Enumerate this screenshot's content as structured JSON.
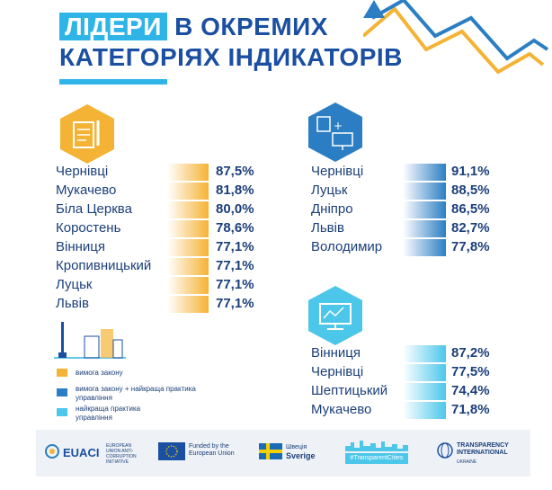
{
  "title": {
    "highlight": "ЛІДЕРИ",
    "line1_rest": "В ОКРЕМИХ",
    "line2": "КАТЕГОРІЯХ ІНДИКАТОРІВ"
  },
  "colors": {
    "accent_blue": "#2fb4e8",
    "dark_blue": "#1b4fa1",
    "orange": "#f5b335",
    "mid_blue": "#2b7ec3",
    "light_blue": "#4cc7ea"
  },
  "categories": [
    {
      "icon": "legal-document-icon",
      "color": "#f5b335",
      "rows": [
        {
          "city": "Чернівці",
          "value": "87,5%"
        },
        {
          "city": "Мукачево",
          "value": "81,8%"
        },
        {
          "city": "Біла Церква",
          "value": "80,0%"
        },
        {
          "city": "Коростень",
          "value": "78,6%"
        },
        {
          "city": "Вінниця",
          "value": "77,1%"
        },
        {
          "city": "Кропивницький",
          "value": "77,1%"
        },
        {
          "city": "Луцьк",
          "value": "77,1%"
        },
        {
          "city": "Львів",
          "value": "77,1%"
        }
      ]
    },
    {
      "icon": "document-plus-computer-icon",
      "color": "#2b7ec3",
      "rows": [
        {
          "city": "Чернівці",
          "value": "91,1%"
        },
        {
          "city": "Луцьк",
          "value": "88,5%"
        },
        {
          "city": "Дніпро",
          "value": "86,5%"
        },
        {
          "city": "Львів",
          "value": "82,7%"
        },
        {
          "city": "Володимир",
          "value": "77,8%"
        }
      ]
    },
    {
      "icon": "computer-monitor-icon",
      "color": "#4cc7ea",
      "rows": [
        {
          "city": "Вінниця",
          "value": "87,2%"
        },
        {
          "city": "Чернівці",
          "value": "77,5%"
        },
        {
          "city": "Шептицький",
          "value": "74,4%"
        },
        {
          "city": "Мукачево",
          "value": "71,8%"
        }
      ]
    }
  ],
  "legend": [
    {
      "label": "вимога закону",
      "color": "#f5b335"
    },
    {
      "label": "вимога закону + найкраща практика управління",
      "color": "#2b7ec3"
    },
    {
      "label": "найкраща практика управління",
      "color": "#4cc7ea"
    }
  ],
  "footer": {
    "euaci": "EUACI",
    "euaci_sub": "EUROPEAN UNION ANTI-CORRUPTION INITIATIVE",
    "eu_funded": "Funded by the European Union",
    "sweden_top": "Швеція",
    "sweden_bottom": "Sverige",
    "transparent_cities": "#TransparentCities",
    "ti": "TRANSPARENCY INTERNATIONAL",
    "ti_sub": "UKRAINE"
  }
}
